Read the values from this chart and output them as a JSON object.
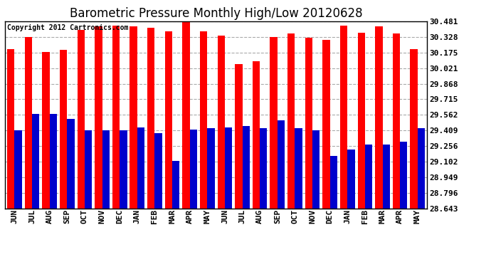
{
  "title": "Barometric Pressure Monthly High/Low 20120628",
  "copyright_text": "Copyright 2012 Cartronics.com",
  "months": [
    "JUN",
    "JUL",
    "AUG",
    "SEP",
    "OCT",
    "NOV",
    "DEC",
    "JAN",
    "FEB",
    "MAR",
    "APR",
    "MAY",
    "JUN",
    "JUL",
    "AUG",
    "SEP",
    "OCT",
    "NOV",
    "DEC",
    "JAN",
    "FEB",
    "MAR",
    "APR",
    "MAY"
  ],
  "highs": [
    30.21,
    30.33,
    30.18,
    30.2,
    30.4,
    30.43,
    30.44,
    30.43,
    30.42,
    30.38,
    30.48,
    30.38,
    30.34,
    30.06,
    30.09,
    30.33,
    30.36,
    30.32,
    30.3,
    30.44,
    30.37,
    30.43,
    30.36,
    30.21
  ],
  "lows": [
    29.41,
    29.57,
    29.57,
    29.52,
    29.41,
    29.41,
    29.41,
    29.44,
    29.38,
    29.11,
    29.42,
    29.43,
    29.44,
    29.45,
    29.43,
    29.51,
    29.43,
    29.41,
    29.16,
    29.22,
    29.27,
    29.27,
    29.3,
    29.43
  ],
  "yticks": [
    28.643,
    28.796,
    28.949,
    29.102,
    29.256,
    29.409,
    29.562,
    29.715,
    29.868,
    30.021,
    30.175,
    30.328,
    30.481
  ],
  "ymin": 28.643,
  "ymax": 30.481,
  "bar_width": 0.42,
  "high_color": "#ff0000",
  "low_color": "#0000cc",
  "bg_color": "#ffffff",
  "grid_color": "#aaaaaa",
  "title_fontsize": 12,
  "tick_fontsize": 8,
  "copyright_fontsize": 7
}
